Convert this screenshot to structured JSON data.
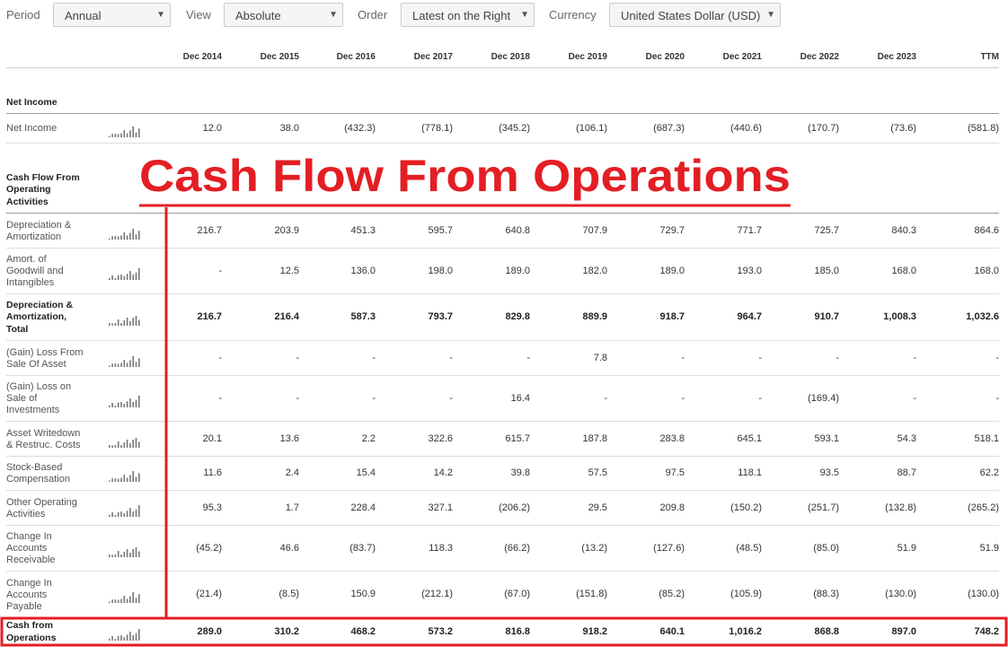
{
  "controls": [
    {
      "label": "Period",
      "value": "Annual"
    },
    {
      "label": "View",
      "value": "Absolute"
    },
    {
      "label": "Order",
      "value": "Latest on the Right"
    },
    {
      "label": "Currency",
      "value": "United States Dollar (USD)"
    }
  ],
  "table": {
    "columns": [
      "Dec 2014",
      "Dec 2015",
      "Dec 2016",
      "Dec 2017",
      "Dec 2018",
      "Dec 2019",
      "Dec 2020",
      "Dec 2021",
      "Dec 2022",
      "Dec 2023",
      "TTM"
    ],
    "sections": [
      {
        "title": [
          "Net Income"
        ],
        "rows": [
          {
            "label": [
              "Net Income"
            ],
            "values": [
              "12.0",
              "38.0",
              "(432.3)",
              "(778.1)",
              "(345.2)",
              "(106.1)",
              "(687.3)",
              "(440.6)",
              "(170.7)",
              "(73.6)",
              "(581.8)"
            ]
          }
        ]
      },
      {
        "title": [
          "Cash Flow From",
          "Operating",
          "Activities"
        ],
        "rows": [
          {
            "label": [
              "Depreciation &",
              "Amortization"
            ],
            "values": [
              "216.7",
              "203.9",
              "451.3",
              "595.7",
              "640.8",
              "707.9",
              "729.7",
              "771.7",
              "725.7",
              "840.3",
              "864.6"
            ]
          },
          {
            "label": [
              "Amort. of",
              "Goodwill and",
              "Intangibles"
            ],
            "values": [
              "-",
              "12.5",
              "136.0",
              "198.0",
              "189.0",
              "182.0",
              "189.0",
              "193.0",
              "185.0",
              "168.0",
              "168.0"
            ]
          },
          {
            "label": [
              "Depreciation &",
              "Amortization,",
              "Total"
            ],
            "bold": true,
            "values": [
              "216.7",
              "216.4",
              "587.3",
              "793.7",
              "829.8",
              "889.9",
              "918.7",
              "964.7",
              "910.7",
              "1,008.3",
              "1,032.6"
            ]
          },
          {
            "label": [
              "(Gain) Loss From",
              "Sale Of Asset"
            ],
            "values": [
              "-",
              "-",
              "-",
              "-",
              "-",
              "7.8",
              "-",
              "-",
              "-",
              "-",
              "-"
            ]
          },
          {
            "label": [
              "(Gain) Loss on",
              "Sale of",
              "Investments"
            ],
            "values": [
              "-",
              "-",
              "-",
              "-",
              "16.4",
              "-",
              "-",
              "-",
              "(169.4)",
              "-",
              "-"
            ]
          },
          {
            "label": [
              "Asset Writedown",
              "& Restruc. Costs"
            ],
            "values": [
              "20.1",
              "13.6",
              "2.2",
              "322.6",
              "615.7",
              "187.8",
              "283.8",
              "645.1",
              "593.1",
              "54.3",
              "518.1"
            ]
          },
          {
            "label": [
              "Stock-Based",
              "Compensation"
            ],
            "values": [
              "11.6",
              "2.4",
              "15.4",
              "14.2",
              "39.8",
              "57.5",
              "97.5",
              "118.1",
              "93.5",
              "88.7",
              "62.2"
            ]
          },
          {
            "label": [
              "Other Operating",
              "Activities"
            ],
            "values": [
              "95.3",
              "1.7",
              "228.4",
              "327.1",
              "(206.2)",
              "29.5",
              "209.8",
              "(150.2)",
              "(251.7)",
              "(132.8)",
              "(265.2)"
            ]
          },
          {
            "label": [
              "Change In",
              "Accounts",
              "Receivable"
            ],
            "values": [
              "(45.2)",
              "46.6",
              "(83.7)",
              "118.3",
              "(66.2)",
              "(13.2)",
              "(127.6)",
              "(48.5)",
              "(85.0)",
              "51.9",
              "51.9"
            ]
          },
          {
            "label": [
              "Change In",
              "Accounts",
              "Payable"
            ],
            "values": [
              "(21.4)",
              "(8.5)",
              "150.9",
              "(212.1)",
              "(67.0)",
              "(151.8)",
              "(85.2)",
              "(105.9)",
              "(88.3)",
              "(130.0)",
              "(130.0)"
            ]
          },
          {
            "label": [
              "Cash from",
              "Operations"
            ],
            "bold": true,
            "values": [
              "289.0",
              "310.2",
              "468.2",
              "573.2",
              "816.8",
              "918.2",
              "640.1",
              "1,016.2",
              "868.8",
              "897.0",
              "748.2"
            ]
          }
        ]
      }
    ]
  },
  "annotation": "Cash Flow From Operations"
}
